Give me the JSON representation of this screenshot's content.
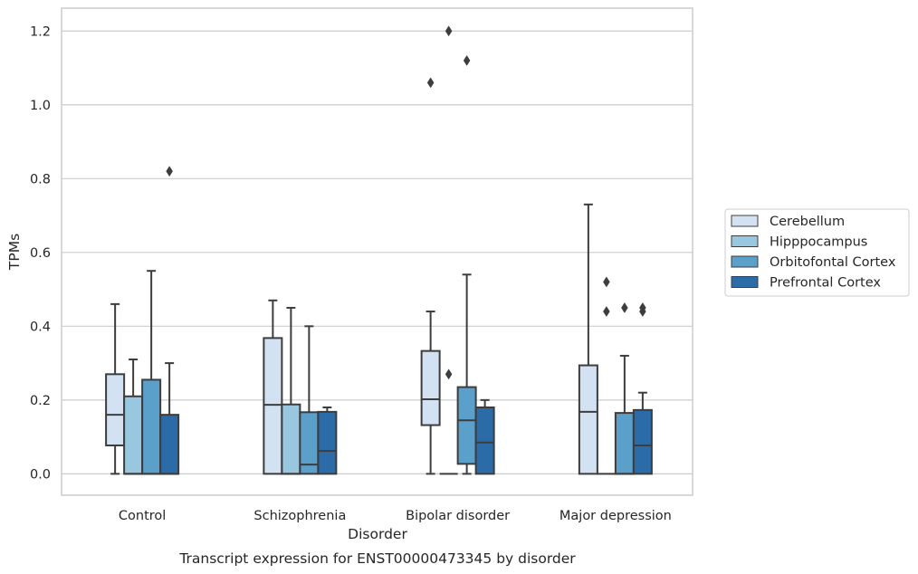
{
  "chart_data": {
    "type": "box",
    "caption": "Transcript expression for ENST00000473345 by disorder",
    "xlabel": "Disorder",
    "ylabel": "TPMs",
    "ylim": [
      -0.058,
      1.262
    ],
    "yticks": [
      0.0,
      0.2,
      0.4,
      0.6,
      0.8,
      1.0,
      1.2
    ],
    "ytick_labels": [
      "0.0",
      "0.2",
      "0.4",
      "0.6",
      "0.8",
      "1.0",
      "1.2"
    ],
    "grid": "horizontal",
    "legend_position": "right",
    "categories": [
      "Control",
      "Schizophrenia",
      "Bipolar disorder",
      "Major depression"
    ],
    "series": [
      {
        "name": "Cerebellum",
        "color": "#d2e2f2",
        "boxes": [
          {
            "whislo": 0.0,
            "q1": 0.077,
            "med": 0.16,
            "q3": 0.27,
            "whishi": 0.46,
            "fliers": []
          },
          {
            "whislo": 0.0,
            "q1": 0.0,
            "med": 0.187,
            "q3": 0.368,
            "whishi": 0.47,
            "fliers": []
          },
          {
            "whislo": 0.0,
            "q1": 0.132,
            "med": 0.202,
            "q3": 0.333,
            "whishi": 0.44,
            "fliers": [
              1.06
            ]
          },
          {
            "whislo": 0.0,
            "q1": 0.0,
            "med": 0.168,
            "q3": 0.294,
            "whishi": 0.73,
            "fliers": []
          }
        ]
      },
      {
        "name": "Hipppocampus",
        "color": "#9ac7e0",
        "boxes": [
          {
            "whislo": 0.0,
            "q1": 0.0,
            "med": 0.0,
            "q3": 0.21,
            "whishi": 0.31,
            "fliers": []
          },
          {
            "whislo": 0.0,
            "q1": 0.0,
            "med": 0.0,
            "q3": 0.188,
            "whishi": 0.45,
            "fliers": []
          },
          {
            "whislo": 0.0,
            "q1": 0.0,
            "med": 0.0,
            "q3": 0.0,
            "whishi": 0.0,
            "fliers": [
              0.27,
              1.2
            ]
          },
          {
            "whislo": 0.0,
            "q1": 0.0,
            "med": 0.0,
            "q3": 0.0,
            "whishi": 0.0,
            "fliers": [
              0.44,
              0.52
            ]
          }
        ]
      },
      {
        "name": "Orbitofontal Cortex",
        "color": "#5b9fcb",
        "boxes": [
          {
            "whislo": 0.0,
            "q1": 0.0,
            "med": 0.0,
            "q3": 0.255,
            "whishi": 0.55,
            "fliers": []
          },
          {
            "whislo": 0.0,
            "q1": 0.0,
            "med": 0.025,
            "q3": 0.167,
            "whishi": 0.4,
            "fliers": []
          },
          {
            "whislo": 0.0,
            "q1": 0.027,
            "med": 0.145,
            "q3": 0.235,
            "whishi": 0.54,
            "fliers": [
              1.12
            ]
          },
          {
            "whislo": 0.0,
            "q1": 0.0,
            "med": 0.0,
            "q3": 0.165,
            "whishi": 0.32,
            "fliers": [
              0.45
            ]
          }
        ]
      },
      {
        "name": "Prefrontal Cortex",
        "color": "#2b6ca8",
        "boxes": [
          {
            "whislo": 0.0,
            "q1": 0.0,
            "med": 0.0,
            "q3": 0.16,
            "whishi": 0.3,
            "fliers": [
              0.82
            ]
          },
          {
            "whislo": 0.0,
            "q1": 0.0,
            "med": 0.062,
            "q3": 0.168,
            "whishi": 0.18,
            "fliers": []
          },
          {
            "whislo": 0.0,
            "q1": 0.0,
            "med": 0.085,
            "q3": 0.18,
            "whishi": 0.2,
            "fliers": []
          },
          {
            "whislo": 0.0,
            "q1": 0.0,
            "med": 0.077,
            "q3": 0.173,
            "whishi": 0.22,
            "fliers": [
              0.44,
              0.45
            ]
          }
        ]
      }
    ]
  }
}
